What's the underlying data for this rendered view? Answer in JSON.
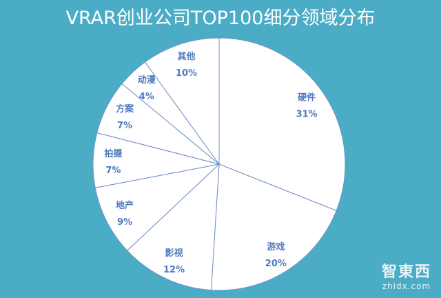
{
  "chart_data": {
    "type": "pie",
    "title": "VRAR创业公司TOP100细分领域分布",
    "start": "top",
    "direction": "clockwise",
    "slices": [
      {
        "label": "硬件",
        "value": 31,
        "text": "31%"
      },
      {
        "label": "游戏",
        "value": 20,
        "text": "20%"
      },
      {
        "label": "影视",
        "value": 12,
        "text": "12%"
      },
      {
        "label": "地产",
        "value": 9,
        "text": "9%"
      },
      {
        "label": "拍摄",
        "value": 7,
        "text": "7%"
      },
      {
        "label": "方案",
        "value": 7,
        "text": "7%"
      },
      {
        "label": "动漫",
        "value": 4,
        "text": "4%"
      },
      {
        "label": "其他",
        "value": 10,
        "text": "10%"
      }
    ],
    "colors": {
      "background": "#4BACC6",
      "slice_fill": "#FFFFFF",
      "slice_border": "#6F8FC8",
      "label": "#4F7BBE"
    }
  },
  "watermark": {
    "logo": "智東西",
    "url": "zhidx.com"
  }
}
